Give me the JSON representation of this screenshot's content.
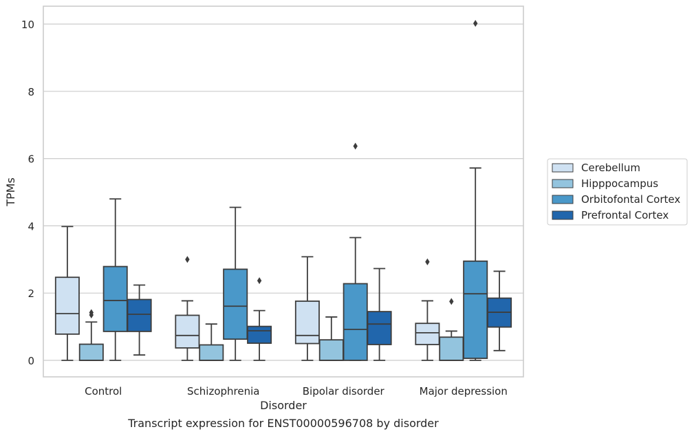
{
  "caption": "Transcript expression for ENST00000596708 by disorder",
  "chart_data": {
    "type": "box",
    "xlabel": "Disorder",
    "ylabel": "TPMs",
    "ylim": [
      -0.48,
      10.55
    ],
    "yticks": [
      0,
      2,
      4,
      6,
      8,
      10
    ],
    "grid": "horizontal",
    "legend_position": "right",
    "categories": [
      "Control",
      "Schizophrenia",
      "Bipolar disorder",
      "Major depression"
    ],
    "series": [
      {
        "name": "Cerebellum",
        "color": "#cfe1f2",
        "boxes": [
          {
            "whislo": 0.0,
            "q1": 0.78,
            "med": 1.39,
            "q3": 2.47,
            "whishi": 3.98,
            "fliers": []
          },
          {
            "whislo": 0.0,
            "q1": 0.37,
            "med": 0.74,
            "q3": 1.34,
            "whishi": 1.77,
            "fliers": [
              3.0
            ]
          },
          {
            "whislo": 0.0,
            "q1": 0.5,
            "med": 0.74,
            "q3": 1.76,
            "whishi": 3.08,
            "fliers": []
          },
          {
            "whislo": 0.0,
            "q1": 0.47,
            "med": 0.82,
            "q3": 1.1,
            "whishi": 1.77,
            "fliers": [
              2.93
            ]
          }
        ]
      },
      {
        "name": "Hipppocampus",
        "color": "#93c4de",
        "boxes": [
          {
            "whislo": 0.0,
            "q1": 0.0,
            "med": 0.0,
            "q3": 0.48,
            "whishi": 1.14,
            "fliers": [
              1.35,
              1.42
            ]
          },
          {
            "whislo": 0.0,
            "q1": 0.0,
            "med": 0.0,
            "q3": 0.46,
            "whishi": 1.08,
            "fliers": []
          },
          {
            "whislo": 0.0,
            "q1": 0.0,
            "med": 0.0,
            "q3": 0.61,
            "whishi": 1.29,
            "fliers": []
          },
          {
            "whislo": 0.0,
            "q1": 0.0,
            "med": 0.0,
            "q3": 0.69,
            "whishi": 0.87,
            "fliers": [
              1.75
            ]
          }
        ]
      },
      {
        "name": "Orbitofontal Cortex",
        "color": "#4a98c9",
        "boxes": [
          {
            "whislo": 0.0,
            "q1": 0.86,
            "med": 1.78,
            "q3": 2.79,
            "whishi": 4.8,
            "fliers": []
          },
          {
            "whislo": 0.0,
            "q1": 0.63,
            "med": 1.61,
            "q3": 2.71,
            "whishi": 4.55,
            "fliers": []
          },
          {
            "whislo": 0.0,
            "q1": 0.0,
            "med": 0.92,
            "q3": 2.28,
            "whishi": 3.65,
            "fliers": [
              6.37
            ]
          },
          {
            "whislo": 0.0,
            "q1": 0.06,
            "med": 1.98,
            "q3": 2.95,
            "whishi": 5.72,
            "fliers": [
              10.02
            ]
          }
        ]
      },
      {
        "name": "Prefrontal Cortex",
        "color": "#2166ac",
        "boxes": [
          {
            "whislo": 0.16,
            "q1": 0.86,
            "med": 1.37,
            "q3": 1.81,
            "whishi": 2.24,
            "fliers": []
          },
          {
            "whislo": 0.0,
            "q1": 0.51,
            "med": 0.88,
            "q3": 1.01,
            "whishi": 1.48,
            "fliers": [
              2.37
            ]
          },
          {
            "whislo": 0.0,
            "q1": 0.47,
            "med": 1.08,
            "q3": 1.45,
            "whishi": 2.73,
            "fliers": []
          },
          {
            "whislo": 0.29,
            "q1": 0.99,
            "med": 1.43,
            "q3": 1.85,
            "whishi": 2.65,
            "fliers": []
          }
        ]
      }
    ]
  }
}
